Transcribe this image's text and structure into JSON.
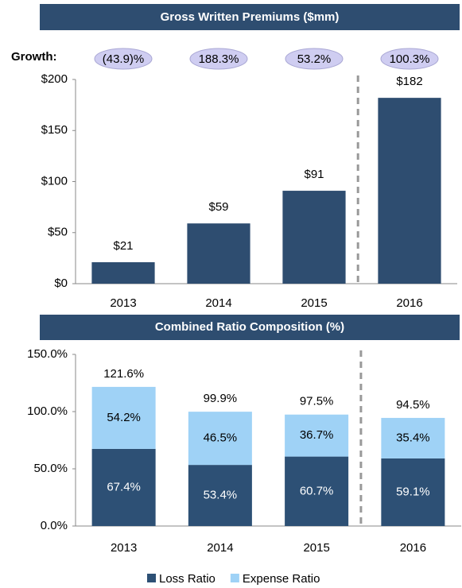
{
  "chart_data": [
    {
      "type": "bar",
      "title": "Gross Written Premiums ($mm)",
      "categories": [
        "2013",
        "2014",
        "2015",
        "2016"
      ],
      "values": [
        21,
        59,
        91,
        182
      ],
      "value_labels": [
        "$21",
        "$59",
        "$91",
        "$182"
      ],
      "color": "#2e4d70",
      "ylim": [
        0,
        200
      ],
      "yticks": [
        {
          "value": 0,
          "label": "$0"
        },
        {
          "value": 50,
          "label": "$50"
        },
        {
          "value": 100,
          "label": "$100"
        },
        {
          "value": 150,
          "label": "$150"
        },
        {
          "value": 200,
          "label": "$200"
        }
      ],
      "growth_label": "Growth:",
      "growth": [
        "(43.9)%",
        "188.3%",
        "53.2%",
        "100.3%"
      ]
    },
    {
      "type": "stacked_bar",
      "title": "Combined Ratio Composition (%)",
      "categories": [
        "2013",
        "2014",
        "2015",
        "2016"
      ],
      "series": [
        {
          "name": "Loss Ratio",
          "color": "#2d5075",
          "values": [
            67.4,
            53.4,
            60.7,
            59.1
          ],
          "value_labels": [
            "67.4%",
            "53.4%",
            "60.7%",
            "59.1%"
          ]
        },
        {
          "name": "Expense Ratio",
          "color": "#9fd2f6",
          "values": [
            54.2,
            46.5,
            36.7,
            35.4
          ],
          "value_labels": [
            "54.2%",
            "46.5%",
            "36.7%",
            "35.4%"
          ]
        }
      ],
      "totals": [
        121.6,
        99.9,
        97.5,
        94.5
      ],
      "total_labels": [
        "121.6%",
        "99.9%",
        "97.5%",
        "94.5%"
      ],
      "ylim": [
        0,
        150
      ],
      "yticks": [
        {
          "value": 0,
          "label": "0.0%"
        },
        {
          "value": 50,
          "label": "50.0%"
        },
        {
          "value": 100,
          "label": "100.0%"
        },
        {
          "value": 150,
          "label": "150.0%"
        }
      ],
      "legend": "bottom"
    }
  ]
}
